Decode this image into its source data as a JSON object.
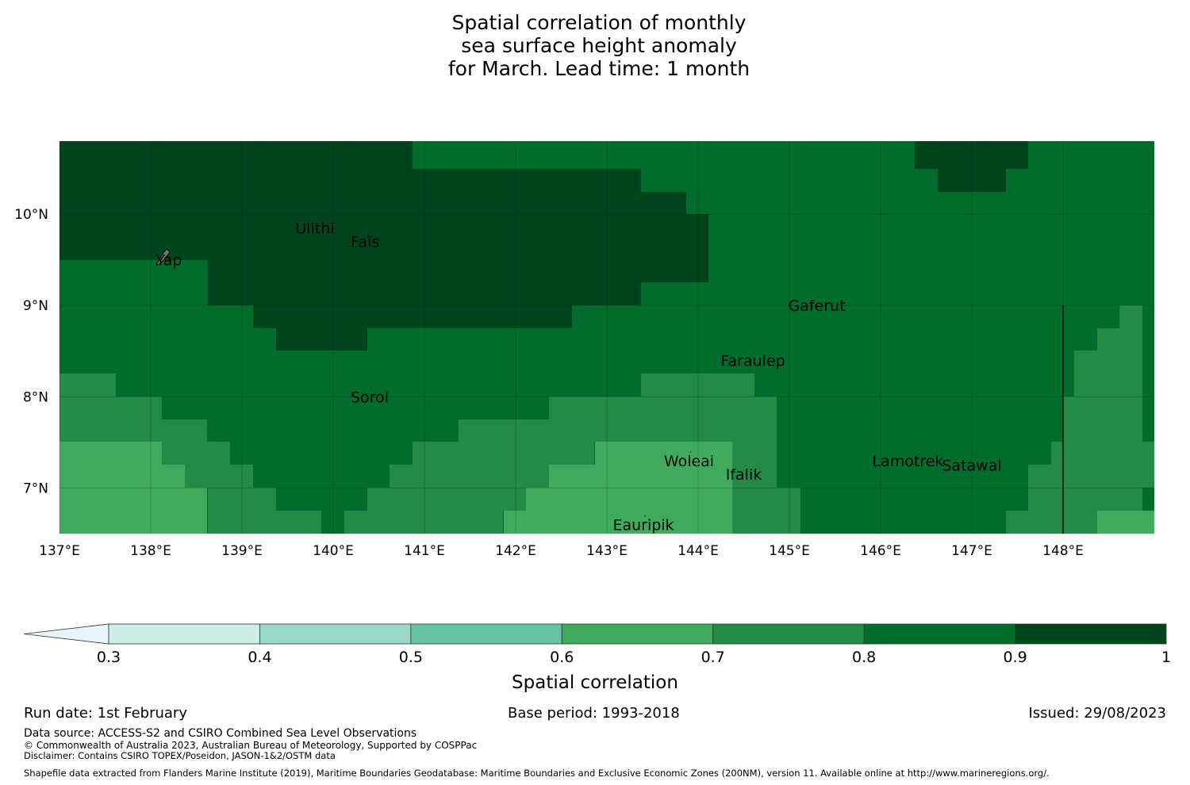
{
  "title": {
    "line1": "Spatial correlation of monthly",
    "line2": "sea surface height anomaly",
    "line3": "for March. Lead time: 1 month"
  },
  "map": {
    "lon_range": [
      137,
      149
    ],
    "lat_range": [
      6.5,
      10.8
    ],
    "lat_ticks": [
      {
        "value": 10,
        "label": "10°N"
      },
      {
        "value": 9,
        "label": "9°N"
      },
      {
        "value": 8,
        "label": "8°N"
      },
      {
        "value": 7,
        "label": "7°N"
      }
    ],
    "lon_ticks": [
      {
        "value": 137,
        "label": "137°E"
      },
      {
        "value": 138,
        "label": "138°E"
      },
      {
        "value": 139,
        "label": "139°E"
      },
      {
        "value": 140,
        "label": "140°E"
      },
      {
        "value": 141,
        "label": "141°E"
      },
      {
        "value": 142,
        "label": "142°E"
      },
      {
        "value": 143,
        "label": "143°E"
      },
      {
        "value": 144,
        "label": "144°E"
      },
      {
        "value": 145,
        "label": "145°E"
      },
      {
        "value": 146,
        "label": "146°E"
      },
      {
        "value": 147,
        "label": "147°E"
      },
      {
        "value": 148,
        "label": "148°E"
      }
    ],
    "boundary_lon": 148,
    "boundary_lat_top": 9,
    "places": [
      {
        "name": "Ulithi",
        "lon": 139.8,
        "lat": 9.85
      },
      {
        "name": "Faïs",
        "lon": 140.35,
        "lat": 9.7
      },
      {
        "name": "Yap",
        "lon": 138.2,
        "lat": 9.5
      },
      {
        "name": "Gaferut",
        "lon": 145.3,
        "lat": 9.0
      },
      {
        "name": "Faraulep",
        "lon": 144.6,
        "lat": 8.4
      },
      {
        "name": "Sorol",
        "lon": 140.4,
        "lat": 8.0
      },
      {
        "name": "Woleai",
        "lon": 143.9,
        "lat": 7.3
      },
      {
        "name": "Ifalik",
        "lon": 144.5,
        "lat": 7.15
      },
      {
        "name": "Lamotrek",
        "lon": 146.3,
        "lat": 7.3
      },
      {
        "name": "Satawal",
        "lon": 147.0,
        "lat": 7.25
      },
      {
        "name": "Eauripik",
        "lon": 143.4,
        "lat": 6.6
      }
    ]
  },
  "palette": {
    "0.9-1.0": "#00441b",
    "0.8-0.9": "#006d2c",
    "0.7-0.8": "#238b45",
    "0.6-0.7": "#41ab5d",
    "0.5-0.6": "#66c2a4",
    "0.4-0.5": "#99d8c9",
    "0.3-0.4": "#ccece6",
    "below-0.3": "#e5f5f9"
  },
  "colorbar": {
    "ticks": [
      "0.3",
      "0.4",
      "0.5",
      "0.6",
      "0.7",
      "0.8",
      "0.9",
      "1"
    ],
    "label": "Spatial correlation"
  },
  "footer": {
    "run_date": "Run date: 1st February",
    "base_period": "Base period: 1993-2018",
    "issued": "Issued: 29/08/2023",
    "data_source": "Data source: ACCESS-S2 and CSIRO Combined Sea Level Observations",
    "copyright": "© Commonwealth of Australia 2023, Australian Bureau of Meteorology, Supported by COSPPac",
    "disclaimer": "Disclaimer: Contains CSIRO TOPEX/Poseidon, JASON-1&2/OSTM data",
    "shapefile": "Shapefile data extracted from Flanders Marine Institute (2019), Maritime Boundaries Geodatabase: Maritime Boundaries and Exclusive Economic Zones (200NM), version 11. Available online at http://www.marineregions.org/."
  }
}
